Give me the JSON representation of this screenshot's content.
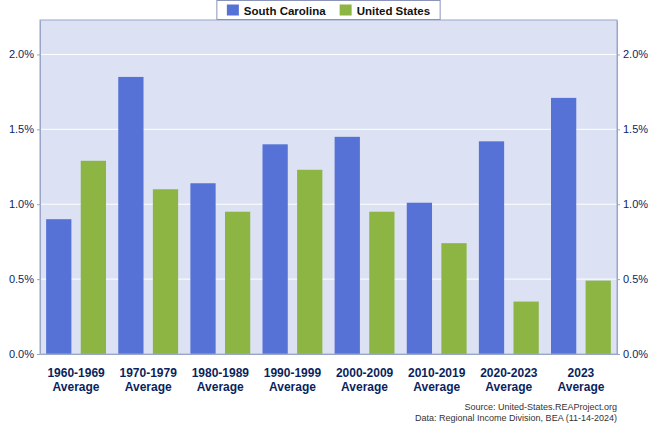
{
  "chart_data": {
    "type": "bar",
    "categories": [
      "1960-1969\nAverage",
      "1970-1979\nAverage",
      "1980-1989\nAverage",
      "1990-1999\nAverage",
      "2000-2009\nAverage",
      "2010-2019\nAverage",
      "2020-2023\nAverage",
      "2023\nAverage"
    ],
    "series": [
      {
        "name": "South Carolina",
        "color": "#5672d6",
        "values": [
          0.9,
          1.85,
          1.14,
          1.4,
          1.45,
          1.01,
          1.42,
          1.71
        ]
      },
      {
        "name": "United States",
        "color": "#8cb544",
        "values": [
          1.29,
          1.1,
          0.95,
          1.23,
          0.95,
          0.74,
          0.35,
          0.49
        ]
      }
    ],
    "ylim": [
      0,
      2.23
    ],
    "yticks": [
      {
        "value": 0,
        "label": "0.0%"
      },
      {
        "value": 0.5,
        "label": "0.5%"
      },
      {
        "value": 1.0,
        "label": "1.0%"
      },
      {
        "value": 1.5,
        "label": "1.5%"
      },
      {
        "value": 2.0,
        "label": "2.0%"
      }
    ],
    "grid": true,
    "legend": "top",
    "annotations": [
      "Source: United-States.REAProject.org",
      "Data: Regional Income Division, BEA (11-14-2024)"
    ]
  }
}
